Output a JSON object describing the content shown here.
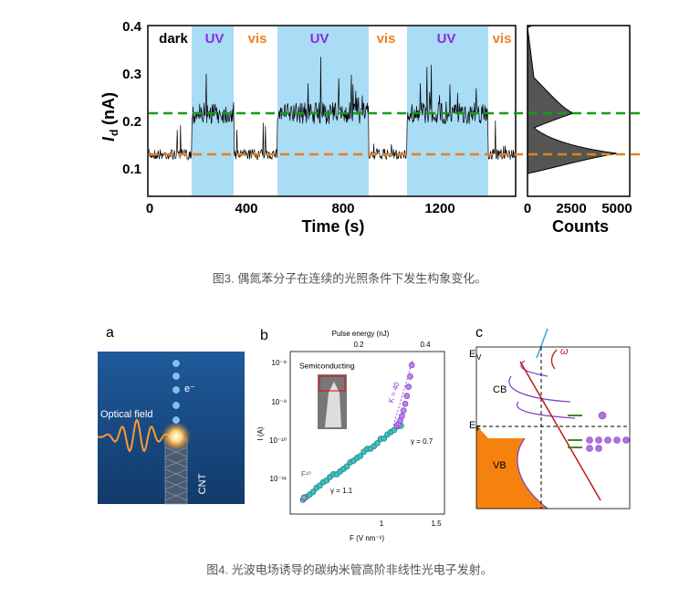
{
  "figure3": {
    "band_labels": [
      "dark",
      "UV",
      "vis",
      "UV",
      "vis",
      "UV",
      "vis"
    ],
    "y_label": {
      "symbol": "I",
      "subscript": "d",
      "unit": "(nA)"
    },
    "y_ticks": [
      "0.4",
      "0.3",
      "0.2",
      "0.1"
    ],
    "x_ticks": [
      "0",
      "400",
      "800",
      "1200"
    ],
    "x_label": "Time (s)",
    "hist_ticks": [
      "0",
      "2500",
      "5000"
    ],
    "hist_label": "Counts",
    "caption": "图3. 偶氮苯分子在连续的光照条件下发生构象变化。"
  },
  "figure4": {
    "panel_a": {
      "label": "a",
      "optical_field": "Optical field",
      "electron": "e⁻",
      "cnt": "CNT"
    },
    "panel_b": {
      "label": "b",
      "top_axis_label": "Pulse energy (nJ)",
      "top_ticks": [
        "0.2",
        "0.4"
      ],
      "y_ticks": [
        "10⁻⁸",
        "10⁻⁹",
        "10⁻¹⁰",
        "10⁻¹¹"
      ],
      "y_label": "I (A)",
      "x_ticks": [
        "1",
        "1.5"
      ],
      "x_label": "F (V nm⁻¹)",
      "inset_label": "Semiconducting",
      "k_label": "K = 40",
      "gamma_high": "γ = 0.7",
      "power_law": "F¹⁰",
      "gamma_low": "γ = 1.1"
    },
    "panel_c": {
      "label": "c",
      "ev": "E",
      "ev_sub": "V",
      "cb": "CB",
      "ef": "E",
      "ef_sub": "F",
      "vb": "VB",
      "omega": "ω"
    },
    "caption": "图4. 光波电场诱导的碳纳米管高阶非线性光电子发射。"
  }
}
